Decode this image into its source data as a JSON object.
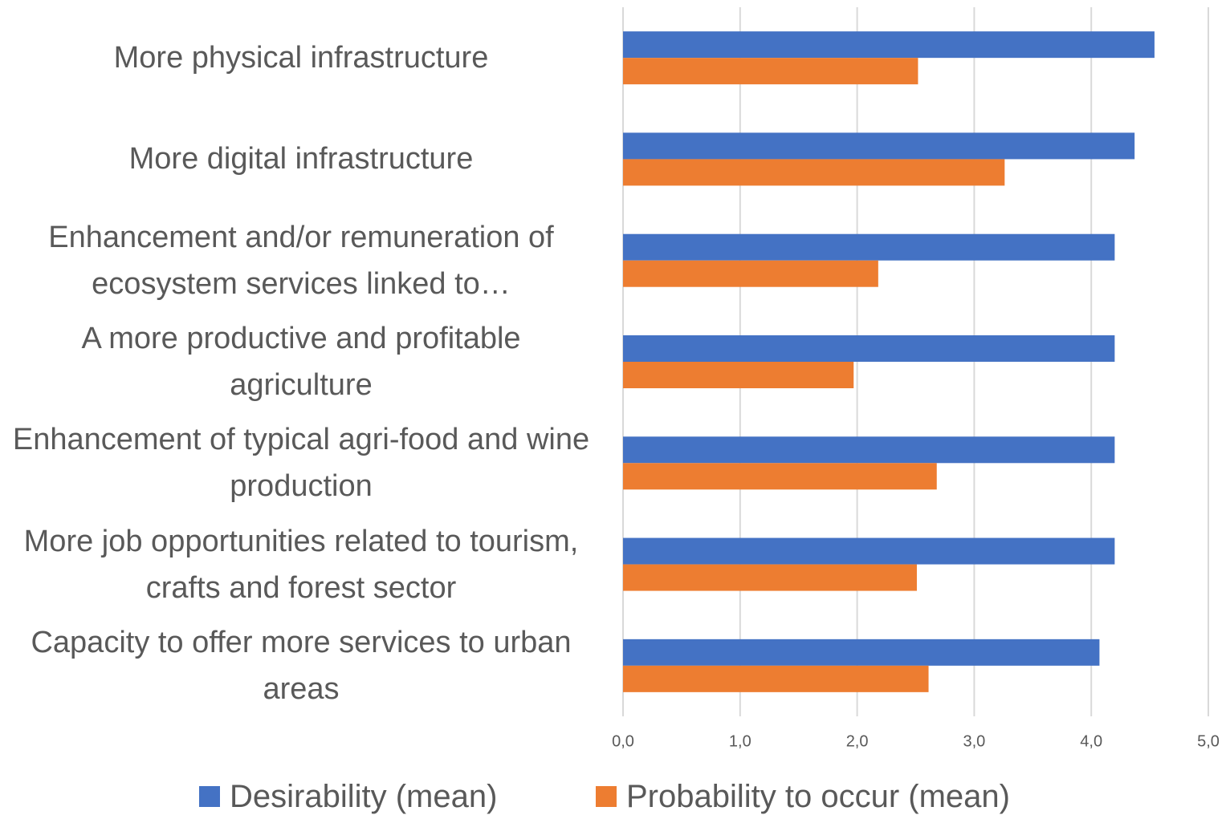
{
  "chart_data": {
    "type": "barh",
    "categories": [
      "More physical infrastructure",
      "More digital infrastructure",
      "Enhancement and/or remuneration of ecosystem services linked to…",
      "A more productive and profitable agriculture",
      "Enhancement of typical agri-food and wine production",
      "More job opportunities related to tourism, crafts and forest sector",
      "Capacity to offer more services to urban areas"
    ],
    "series": [
      {
        "name": "Desirability (mean)",
        "color": "#4472c4",
        "values": [
          4.54,
          4.37,
          4.2,
          4.2,
          4.2,
          4.2,
          4.07
        ]
      },
      {
        "name": "Probability to occur (mean)",
        "color": "#ed7d31",
        "values": [
          2.52,
          3.26,
          2.18,
          1.97,
          2.68,
          2.51,
          2.61
        ]
      }
    ],
    "xlim": [
      0,
      5
    ],
    "xticks": [
      {
        "value": 0,
        "label": "0,0"
      },
      {
        "value": 1,
        "label": "1,0"
      },
      {
        "value": 2,
        "label": "2,0"
      },
      {
        "value": 3,
        "label": "3,0"
      },
      {
        "value": 4,
        "label": "4,0"
      },
      {
        "value": 5,
        "label": "5,0"
      }
    ],
    "grid": true,
    "legend": "bottom"
  }
}
